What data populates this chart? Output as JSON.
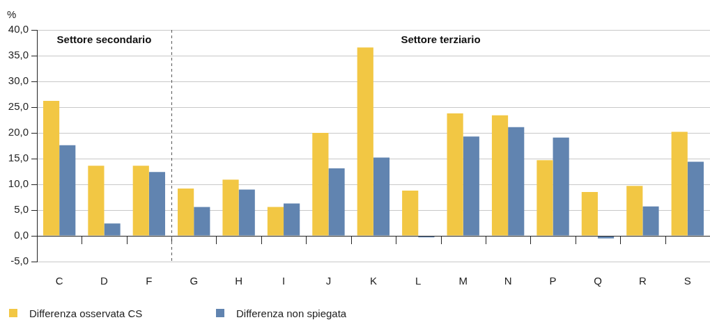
{
  "chart_data": [
    {
      "type": "bar",
      "title": "Settore secondario",
      "ylabel": "%",
      "categories": [
        "C",
        "D",
        "F"
      ],
      "series": [
        {
          "color": "#f2c744",
          "values": [
            26.2,
            13.6,
            13.6
          ]
        },
        {
          "color": "#6184b0",
          "values": [
            17.6,
            2.4,
            12.4
          ]
        }
      ],
      "ylim": [
        -5,
        40
      ],
      "yticks": [
        {
          "value": -5,
          "label": "-5,0"
        },
        {
          "value": 0,
          "label": "0,0"
        },
        {
          "value": 5,
          "label": "5,0"
        },
        {
          "value": 10,
          "label": "10,0"
        },
        {
          "value": 15,
          "label": "15,0"
        },
        {
          "value": 20,
          "label": "20,0"
        },
        {
          "value": 25,
          "label": "25,0"
        },
        {
          "value": 30,
          "label": "30,0"
        },
        {
          "value": 35,
          "label": "35,0"
        },
        {
          "value": 40,
          "label": "40,0"
        }
      ],
      "grid": "y"
    },
    {
      "type": "bar",
      "title": "Settore terziario",
      "categories": [
        "G",
        "H",
        "I",
        "J",
        "K",
        "L",
        "M",
        "N",
        "P",
        "Q",
        "R",
        "S"
      ],
      "series": [
        {
          "name": "Differenza osservata CS",
          "color": "#f2c744",
          "values": [
            9.2,
            10.9,
            5.6,
            20.0,
            36.6,
            8.8,
            23.8,
            23.4,
            14.7,
            8.5,
            9.7,
            20.2
          ]
        },
        {
          "name": "Differenza non spiegata",
          "color": "#6184b0",
          "values": [
            5.6,
            9.0,
            6.3,
            13.1,
            15.2,
            -0.3,
            19.3,
            21.1,
            19.1,
            -0.5,
            5.7,
            14.4
          ]
        }
      ],
      "ylim": [
        -5,
        40
      ],
      "yticks": [
        -5,
        0,
        5,
        10,
        15,
        20,
        25,
        30,
        35,
        40
      ],
      "grid": "y",
      "tick_labels": "x",
      "legend": "bottom left"
    }
  ]
}
